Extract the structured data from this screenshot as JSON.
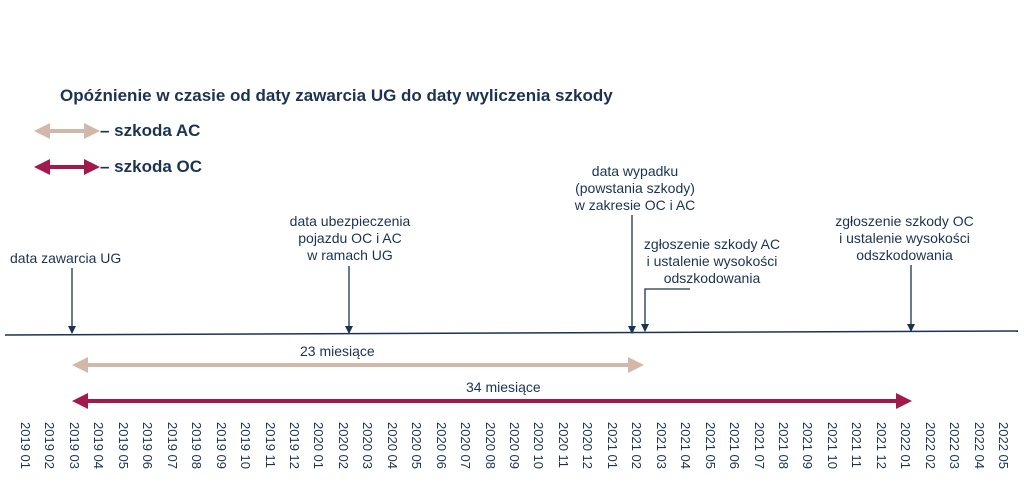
{
  "title": "Opóźnienie w czasie od daty zawarcia UG do daty wyliczenia szkody",
  "legend": [
    {
      "label": "– szkoda AC",
      "color": "#d2b8a8"
    },
    {
      "label": "– szkoda OC",
      "color": "#a01a4d"
    }
  ],
  "annotations": [
    {
      "id": "contract",
      "lines": [
        "data zawarcia UG"
      ]
    },
    {
      "id": "insurance",
      "lines": [
        "data ubezpieczenia",
        "pojazdu OC i AC",
        "w ramach UG"
      ]
    },
    {
      "id": "accident",
      "lines": [
        "data wypadku",
        "(powstania szkody)",
        "w zakresie OC i AC"
      ]
    },
    {
      "id": "ac-claim",
      "lines": [
        "zgłoszenie szkody AC",
        "i ustalenie wysokości",
        "odszkodowania"
      ]
    },
    {
      "id": "oc-claim",
      "lines": [
        "zgłoszenie szkody OC",
        "i ustalenie wysokości",
        "odszkodowania"
      ]
    }
  ],
  "spans": [
    {
      "label": "23 miesiące",
      "type": "AC"
    },
    {
      "label": "34 miesiące",
      "type": "OC"
    }
  ],
  "months": [
    "2019 01",
    "2019 02",
    "2019 03",
    "2019 04",
    "2019 05",
    "2019 06",
    "2019 07",
    "2019 08",
    "2019 09",
    "2019 10",
    "2019 11",
    "2019 12",
    "2020 01",
    "2020 02",
    "2020 03",
    "2020 04",
    "2020 05",
    "2020 06",
    "2020 07",
    "2020 08",
    "2020 09",
    "2020 10",
    "2020 11",
    "2020 12",
    "2021 01",
    "2021 02",
    "2021 03",
    "2021 04",
    "2021 05",
    "2021 06",
    "2021 07",
    "2021 08",
    "2021 09",
    "2021 10",
    "2021 11",
    "2021 12",
    "2022 01",
    "2022 02",
    "2022 03",
    "2022 04",
    "2022 05"
  ],
  "colors": {
    "text": "#1b3352",
    "axis": "#1b3352",
    "ac": "#d2b8a8",
    "oc": "#a01a4d"
  }
}
